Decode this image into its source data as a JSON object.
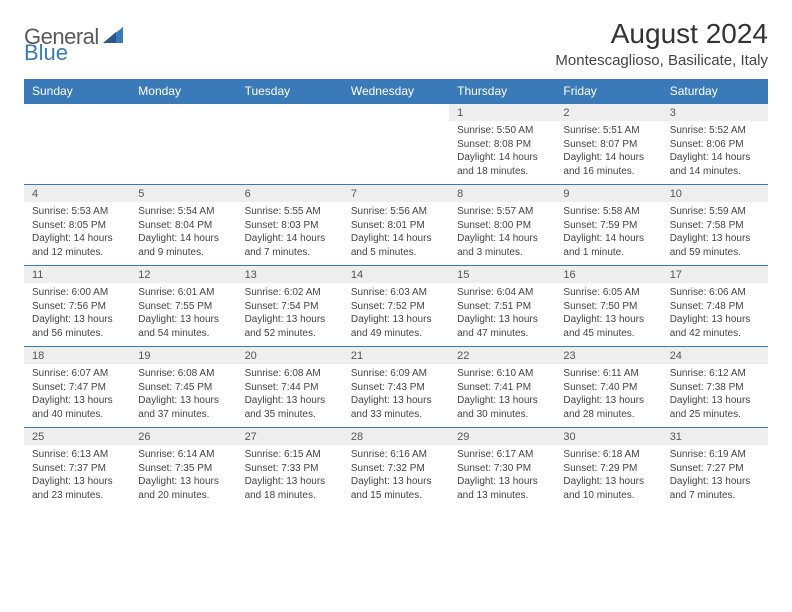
{
  "logo": {
    "text1": "General",
    "text2": "Blue"
  },
  "title": "August 2024",
  "location": "Montescaglioso, Basilicate, Italy",
  "colors": {
    "header_bg": "#3a7ab8",
    "daynum_bg": "#eeeeee",
    "text": "#444444"
  },
  "day_headers": [
    "Sunday",
    "Monday",
    "Tuesday",
    "Wednesday",
    "Thursday",
    "Friday",
    "Saturday"
  ],
  "weeks": [
    [
      null,
      null,
      null,
      null,
      {
        "n": "1",
        "sr": "5:50 AM",
        "ss": "8:08 PM",
        "dl": "14 hours and 18 minutes."
      },
      {
        "n": "2",
        "sr": "5:51 AM",
        "ss": "8:07 PM",
        "dl": "14 hours and 16 minutes."
      },
      {
        "n": "3",
        "sr": "5:52 AM",
        "ss": "8:06 PM",
        "dl": "14 hours and 14 minutes."
      }
    ],
    [
      {
        "n": "4",
        "sr": "5:53 AM",
        "ss": "8:05 PM",
        "dl": "14 hours and 12 minutes."
      },
      {
        "n": "5",
        "sr": "5:54 AM",
        "ss": "8:04 PM",
        "dl": "14 hours and 9 minutes."
      },
      {
        "n": "6",
        "sr": "5:55 AM",
        "ss": "8:03 PM",
        "dl": "14 hours and 7 minutes."
      },
      {
        "n": "7",
        "sr": "5:56 AM",
        "ss": "8:01 PM",
        "dl": "14 hours and 5 minutes."
      },
      {
        "n": "8",
        "sr": "5:57 AM",
        "ss": "8:00 PM",
        "dl": "14 hours and 3 minutes."
      },
      {
        "n": "9",
        "sr": "5:58 AM",
        "ss": "7:59 PM",
        "dl": "14 hours and 1 minute."
      },
      {
        "n": "10",
        "sr": "5:59 AM",
        "ss": "7:58 PM",
        "dl": "13 hours and 59 minutes."
      }
    ],
    [
      {
        "n": "11",
        "sr": "6:00 AM",
        "ss": "7:56 PM",
        "dl": "13 hours and 56 minutes."
      },
      {
        "n": "12",
        "sr": "6:01 AM",
        "ss": "7:55 PM",
        "dl": "13 hours and 54 minutes."
      },
      {
        "n": "13",
        "sr": "6:02 AM",
        "ss": "7:54 PM",
        "dl": "13 hours and 52 minutes."
      },
      {
        "n": "14",
        "sr": "6:03 AM",
        "ss": "7:52 PM",
        "dl": "13 hours and 49 minutes."
      },
      {
        "n": "15",
        "sr": "6:04 AM",
        "ss": "7:51 PM",
        "dl": "13 hours and 47 minutes."
      },
      {
        "n": "16",
        "sr": "6:05 AM",
        "ss": "7:50 PM",
        "dl": "13 hours and 45 minutes."
      },
      {
        "n": "17",
        "sr": "6:06 AM",
        "ss": "7:48 PM",
        "dl": "13 hours and 42 minutes."
      }
    ],
    [
      {
        "n": "18",
        "sr": "6:07 AM",
        "ss": "7:47 PM",
        "dl": "13 hours and 40 minutes."
      },
      {
        "n": "19",
        "sr": "6:08 AM",
        "ss": "7:45 PM",
        "dl": "13 hours and 37 minutes."
      },
      {
        "n": "20",
        "sr": "6:08 AM",
        "ss": "7:44 PM",
        "dl": "13 hours and 35 minutes."
      },
      {
        "n": "21",
        "sr": "6:09 AM",
        "ss": "7:43 PM",
        "dl": "13 hours and 33 minutes."
      },
      {
        "n": "22",
        "sr": "6:10 AM",
        "ss": "7:41 PM",
        "dl": "13 hours and 30 minutes."
      },
      {
        "n": "23",
        "sr": "6:11 AM",
        "ss": "7:40 PM",
        "dl": "13 hours and 28 minutes."
      },
      {
        "n": "24",
        "sr": "6:12 AM",
        "ss": "7:38 PM",
        "dl": "13 hours and 25 minutes."
      }
    ],
    [
      {
        "n": "25",
        "sr": "6:13 AM",
        "ss": "7:37 PM",
        "dl": "13 hours and 23 minutes."
      },
      {
        "n": "26",
        "sr": "6:14 AM",
        "ss": "7:35 PM",
        "dl": "13 hours and 20 minutes."
      },
      {
        "n": "27",
        "sr": "6:15 AM",
        "ss": "7:33 PM",
        "dl": "13 hours and 18 minutes."
      },
      {
        "n": "28",
        "sr": "6:16 AM",
        "ss": "7:32 PM",
        "dl": "13 hours and 15 minutes."
      },
      {
        "n": "29",
        "sr": "6:17 AM",
        "ss": "7:30 PM",
        "dl": "13 hours and 13 minutes."
      },
      {
        "n": "30",
        "sr": "6:18 AM",
        "ss": "7:29 PM",
        "dl": "13 hours and 10 minutes."
      },
      {
        "n": "31",
        "sr": "6:19 AM",
        "ss": "7:27 PM",
        "dl": "13 hours and 7 minutes."
      }
    ]
  ],
  "labels": {
    "sunrise": "Sunrise: ",
    "sunset": "Sunset: ",
    "daylight": "Daylight: "
  }
}
